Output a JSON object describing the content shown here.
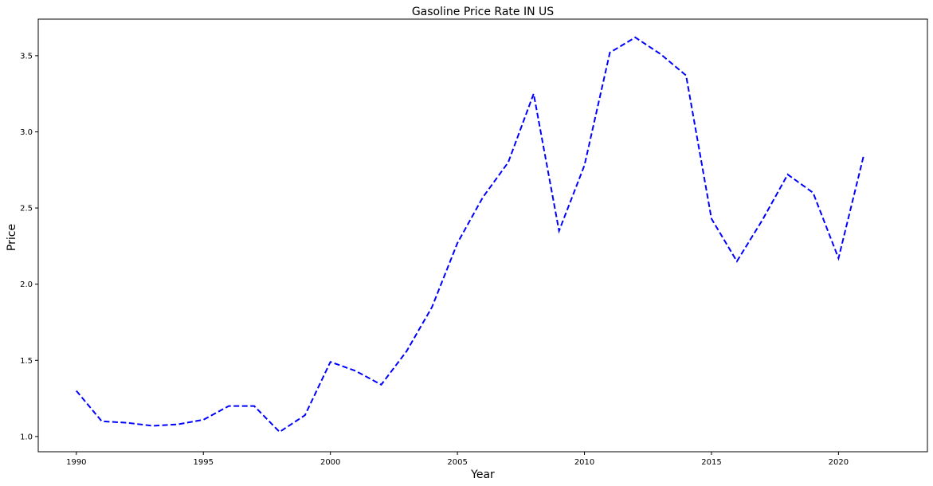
{
  "chart_data": {
    "type": "line",
    "title": "Gasoline Price Rate IN US",
    "xlabel": "Year",
    "ylabel": "Price",
    "x": [
      1990,
      1991,
      1992,
      1993,
      1994,
      1995,
      1996,
      1997,
      1998,
      1999,
      2000,
      2001,
      2002,
      2003,
      2004,
      2005,
      2006,
      2007,
      2008,
      2009,
      2010,
      2011,
      2012,
      2013,
      2014,
      2015,
      2016,
      2017,
      2018,
      2019,
      2020,
      2021
    ],
    "series": [
      {
        "color": "#0000ff",
        "line_style": "dashed",
        "values": [
          1.3,
          1.1,
          1.09,
          1.07,
          1.08,
          1.11,
          1.2,
          1.2,
          1.03,
          1.14,
          1.49,
          1.43,
          1.34,
          1.56,
          1.85,
          2.27,
          2.57,
          2.8,
          3.25,
          2.35,
          2.78,
          3.52,
          3.62,
          3.51,
          3.37,
          2.43,
          2.15,
          2.42,
          2.72,
          2.6,
          2.17,
          2.85
        ]
      }
    ],
    "xticks": [
      1990,
      1995,
      2000,
      2005,
      2010,
      2015,
      2020
    ],
    "yticks": [
      1.0,
      1.5,
      2.0,
      2.5,
      3.0,
      3.5
    ],
    "xlim": [
      1988.5,
      1991.5
    ],
    "ylim": [
      0.9,
      3.74
    ],
    "grid": false,
    "legend": "none"
  }
}
